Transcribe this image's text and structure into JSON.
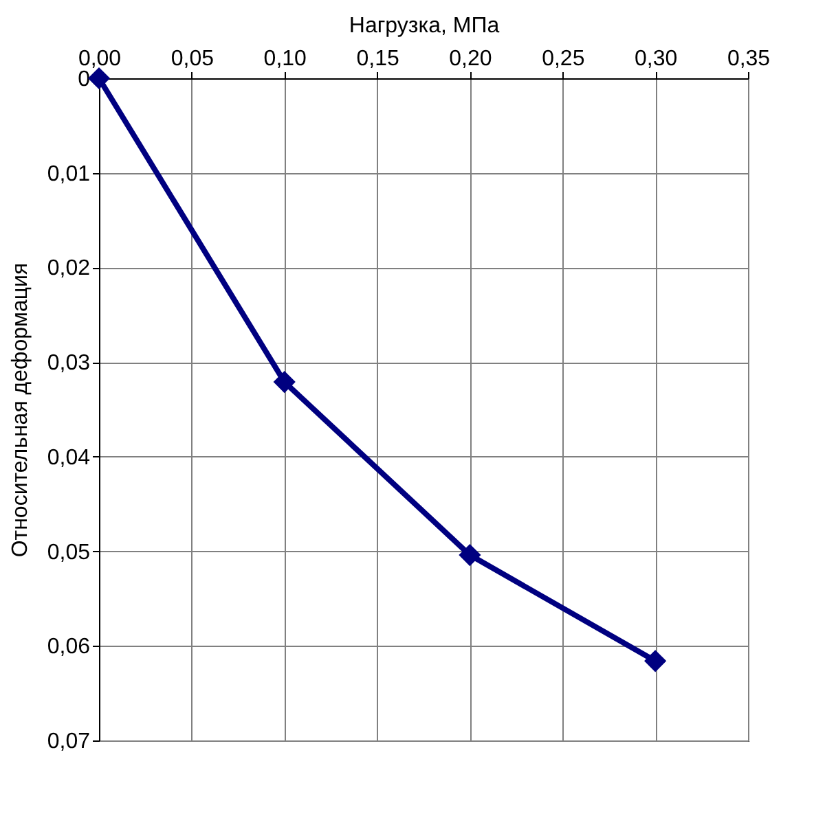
{
  "chart_data": {
    "type": "line",
    "xlabel": "Нагрузка, МПа",
    "ylabel": "Относительная деформация",
    "x": [
      0,
      0.1,
      0.2,
      0.3
    ],
    "series": [
      {
        "color": "#000080",
        "values": [
          0,
          0.0321,
          0.0504,
          0.0616
        ]
      }
    ],
    "xlim": [
      0,
      0.35
    ],
    "xticks": [
      {
        "value": 0,
        "label": "0,00"
      },
      {
        "value": 0.05,
        "label": "0,05"
      },
      {
        "value": 0.1,
        "label": "0,10"
      },
      {
        "value": 0.15,
        "label": "0,15"
      },
      {
        "value": 0.2,
        "label": "0,20"
      },
      {
        "value": 0.25,
        "label": "0,25"
      },
      {
        "value": 0.3,
        "label": "0,30"
      },
      {
        "value": 0.35,
        "label": "0,35"
      }
    ],
    "ylim": [
      0.07,
      0
    ],
    "yticks": [
      0,
      {
        "value": 0.01,
        "label": "0,01"
      },
      {
        "value": 0.02,
        "label": "0,02"
      },
      {
        "value": 0.03,
        "label": "0,03"
      },
      {
        "value": 0.04,
        "label": "0,04"
      },
      {
        "value": 0.05,
        "label": "0,05"
      },
      {
        "value": 0.06,
        "label": "0,06"
      },
      {
        "value": 0.07,
        "label": "0,07"
      }
    ],
    "grid": true,
    "marker": "diamond",
    "line_style": "solid"
  }
}
